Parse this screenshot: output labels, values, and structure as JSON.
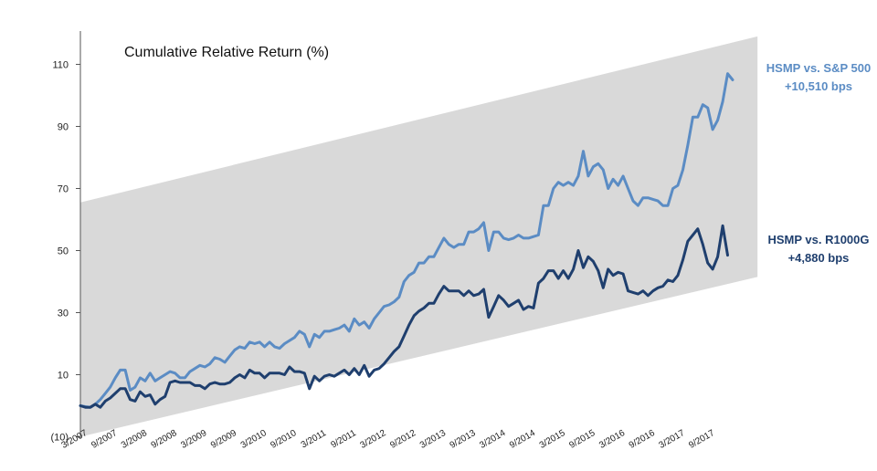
{
  "chart_data": {
    "type": "line",
    "title": "Cumulative Relative Return (%)",
    "xlabel": "",
    "ylabel": "",
    "ylim": [
      -10,
      120
    ],
    "yticks": [
      {
        "value": -10,
        "label": "(10)"
      },
      {
        "value": 10,
        "label": "10"
      },
      {
        "value": 30,
        "label": "30"
      },
      {
        "value": 50,
        "label": "50"
      },
      {
        "value": 70,
        "label": "70"
      },
      {
        "value": 90,
        "label": "90"
      },
      {
        "value": 110,
        "label": "110"
      }
    ],
    "xticks": [
      {
        "month": 0,
        "label": "3/2007"
      },
      {
        "month": 6,
        "label": "9/2007"
      },
      {
        "month": 12,
        "label": "3/2008"
      },
      {
        "month": 18,
        "label": "9/2008"
      },
      {
        "month": 24,
        "label": "3/2009"
      },
      {
        "month": 30,
        "label": "9/2009"
      },
      {
        "month": 36,
        "label": "3/2010"
      },
      {
        "month": 42,
        "label": "9/2010"
      },
      {
        "month": 48,
        "label": "3/2011"
      },
      {
        "month": 54,
        "label": "9/2011"
      },
      {
        "month": 60,
        "label": "3/2012"
      },
      {
        "month": 66,
        "label": "9/2012"
      },
      {
        "month": 72,
        "label": "3/2013"
      },
      {
        "month": 78,
        "label": "9/2013"
      },
      {
        "month": 84,
        "label": "3/2014"
      },
      {
        "month": 90,
        "label": "9/2014"
      },
      {
        "month": 96,
        "label": "3/2015"
      },
      {
        "month": 102,
        "label": "9/2015"
      },
      {
        "month": 108,
        "label": "3/2016"
      },
      {
        "month": 114,
        "label": "9/2016"
      },
      {
        "month": 120,
        "label": "3/2017"
      },
      {
        "month": 126,
        "label": "9/2017"
      }
    ],
    "band": {
      "lower": [
        [
          0,
          -10
        ],
        [
          136,
          41.5
        ]
      ],
      "upper": [
        [
          0,
          65.5
        ],
        [
          136,
          119
        ]
      ],
      "color": "#d9d9d9"
    },
    "series": [
      {
        "name": "HSMP vs. S&P 500",
        "color": "#5b8cc4",
        "points": [
          [
            0,
            0
          ],
          [
            1,
            -0.3
          ],
          [
            2,
            -0.5
          ],
          [
            3,
            0.5
          ],
          [
            4,
            2
          ],
          [
            5,
            4
          ],
          [
            6,
            6
          ],
          [
            7,
            9
          ],
          [
            8,
            11.5
          ],
          [
            9,
            11.5
          ],
          [
            10,
            5
          ],
          [
            11,
            6
          ],
          [
            12,
            9
          ],
          [
            13,
            8
          ],
          [
            14,
            10.5
          ],
          [
            15,
            8
          ],
          [
            16,
            9
          ],
          [
            17,
            10
          ],
          [
            18,
            11
          ],
          [
            19,
            10.5
          ],
          [
            20,
            9
          ],
          [
            21,
            9
          ],
          [
            22,
            11
          ],
          [
            23,
            12
          ],
          [
            24,
            13
          ],
          [
            25,
            12.5
          ],
          [
            26,
            13.5
          ],
          [
            27,
            15.5
          ],
          [
            28,
            15
          ],
          [
            29,
            14
          ],
          [
            30,
            16
          ],
          [
            31,
            18
          ],
          [
            32,
            19
          ],
          [
            33,
            18.5
          ],
          [
            34,
            20.5
          ],
          [
            35,
            20
          ],
          [
            36,
            20.5
          ],
          [
            37,
            19
          ],
          [
            38,
            20.5
          ],
          [
            39,
            19
          ],
          [
            40,
            18.5
          ],
          [
            41,
            20
          ],
          [
            42,
            21
          ],
          [
            43,
            22
          ],
          [
            44,
            24
          ],
          [
            45,
            23
          ],
          [
            46,
            19
          ],
          [
            47,
            23
          ],
          [
            48,
            22
          ],
          [
            49,
            24
          ],
          [
            50,
            24
          ],
          [
            51,
            24.5
          ],
          [
            52,
            25
          ],
          [
            53,
            26
          ],
          [
            54,
            24
          ],
          [
            55,
            28
          ],
          [
            56,
            26
          ],
          [
            57,
            27
          ],
          [
            58,
            25
          ],
          [
            59,
            28
          ],
          [
            60,
            30
          ],
          [
            61,
            32
          ],
          [
            62,
            32.5
          ],
          [
            63,
            33.5
          ],
          [
            64,
            35
          ],
          [
            65,
            40
          ],
          [
            66,
            42
          ],
          [
            67,
            43
          ],
          [
            68,
            46
          ],
          [
            69,
            46
          ],
          [
            70,
            48
          ],
          [
            71,
            48
          ],
          [
            72,
            51
          ],
          [
            73,
            54
          ],
          [
            74,
            52
          ],
          [
            75,
            51
          ],
          [
            76,
            52
          ],
          [
            77,
            52
          ],
          [
            78,
            56
          ],
          [
            79,
            56
          ],
          [
            80,
            57
          ],
          [
            81,
            59
          ],
          [
            82,
            50
          ],
          [
            83,
            56
          ],
          [
            84,
            56
          ],
          [
            85,
            54
          ],
          [
            86,
            53.5
          ],
          [
            87,
            54
          ],
          [
            88,
            55
          ],
          [
            89,
            54
          ],
          [
            90,
            54
          ],
          [
            91,
            54.5
          ],
          [
            92,
            55
          ],
          [
            93,
            64.5
          ],
          [
            94,
            64.5
          ],
          [
            95,
            70
          ],
          [
            96,
            72
          ],
          [
            97,
            71
          ],
          [
            98,
            72
          ],
          [
            99,
            71
          ],
          [
            100,
            74
          ],
          [
            101,
            82
          ],
          [
            102,
            74
          ],
          [
            103,
            77
          ],
          [
            104,
            78
          ],
          [
            105,
            76
          ],
          [
            106,
            70
          ],
          [
            107,
            73
          ],
          [
            108,
            71
          ],
          [
            109,
            74
          ],
          [
            110,
            70
          ],
          [
            111,
            66
          ],
          [
            112,
            64.5
          ],
          [
            113,
            67
          ],
          [
            114,
            67
          ],
          [
            115,
            66.5
          ],
          [
            116,
            66
          ],
          [
            117,
            64.5
          ],
          [
            118,
            64.5
          ],
          [
            119,
            70
          ],
          [
            120,
            71
          ],
          [
            121,
            76
          ],
          [
            122,
            84
          ],
          [
            123,
            93
          ],
          [
            124,
            93
          ],
          [
            125,
            97
          ],
          [
            126,
            96
          ],
          [
            127,
            89
          ],
          [
            128,
            92
          ],
          [
            129,
            98
          ],
          [
            130,
            107
          ],
          [
            131,
            105
          ]
        ]
      },
      {
        "name": "HSMP vs. R1000G",
        "color": "#1f3f6e",
        "points": [
          [
            0,
            0
          ],
          [
            1,
            -0.5
          ],
          [
            2,
            -0.5
          ],
          [
            3,
            0.5
          ],
          [
            4,
            -0.5
          ],
          [
            5,
            1.5
          ],
          [
            6,
            2.5
          ],
          [
            7,
            4
          ],
          [
            8,
            5.5
          ],
          [
            9,
            5.5
          ],
          [
            10,
            2
          ],
          [
            11,
            1.5
          ],
          [
            12,
            4.5
          ],
          [
            13,
            3
          ],
          [
            14,
            3.5
          ],
          [
            15,
            0.5
          ],
          [
            16,
            2
          ],
          [
            17,
            3
          ],
          [
            18,
            7.5
          ],
          [
            19,
            8
          ],
          [
            20,
            7.5
          ],
          [
            21,
            7.5
          ],
          [
            22,
            7.5
          ],
          [
            23,
            6.5
          ],
          [
            24,
            6.5
          ],
          [
            25,
            5.5
          ],
          [
            26,
            7
          ],
          [
            27,
            7.5
          ],
          [
            28,
            7
          ],
          [
            29,
            7
          ],
          [
            30,
            7.5
          ],
          [
            31,
            9
          ],
          [
            32,
            10
          ],
          [
            33,
            9
          ],
          [
            34,
            11.5
          ],
          [
            35,
            10.5
          ],
          [
            36,
            10.5
          ],
          [
            37,
            9
          ],
          [
            38,
            10.5
          ],
          [
            39,
            10.5
          ],
          [
            40,
            10.5
          ],
          [
            41,
            10
          ],
          [
            42,
            12.5
          ],
          [
            43,
            11
          ],
          [
            44,
            11
          ],
          [
            45,
            10.5
          ],
          [
            46,
            5.5
          ],
          [
            47,
            9.5
          ],
          [
            48,
            8
          ],
          [
            49,
            9.5
          ],
          [
            50,
            10
          ],
          [
            51,
            9.5
          ],
          [
            52,
            10.5
          ],
          [
            53,
            11.5
          ],
          [
            54,
            10
          ],
          [
            55,
            12
          ],
          [
            56,
            10
          ],
          [
            57,
            13
          ],
          [
            58,
            9.5
          ],
          [
            59,
            11.5
          ],
          [
            60,
            12
          ],
          [
            61,
            13.5
          ],
          [
            62,
            15.5
          ],
          [
            63,
            17.5
          ],
          [
            64,
            19
          ],
          [
            65,
            22.5
          ],
          [
            66,
            26
          ],
          [
            67,
            29
          ],
          [
            68,
            30.5
          ],
          [
            69,
            31.5
          ],
          [
            70,
            33
          ],
          [
            71,
            33
          ],
          [
            72,
            36
          ],
          [
            73,
            38.5
          ],
          [
            74,
            37
          ],
          [
            75,
            37
          ],
          [
            76,
            37
          ],
          [
            77,
            35.5
          ],
          [
            78,
            37
          ],
          [
            79,
            35.5
          ],
          [
            80,
            36
          ],
          [
            81,
            37.5
          ],
          [
            82,
            28.5
          ],
          [
            83,
            32
          ],
          [
            84,
            35.5
          ],
          [
            85,
            34
          ],
          [
            86,
            32
          ],
          [
            87,
            33
          ],
          [
            88,
            34
          ],
          [
            89,
            31
          ],
          [
            90,
            32
          ],
          [
            91,
            31.5
          ],
          [
            92,
            39.5
          ],
          [
            93,
            41
          ],
          [
            94,
            43.5
          ],
          [
            95,
            43.5
          ],
          [
            96,
            41
          ],
          [
            97,
            43.5
          ],
          [
            98,
            41
          ],
          [
            99,
            44
          ],
          [
            100,
            50
          ],
          [
            101,
            44.5
          ],
          [
            102,
            48
          ],
          [
            103,
            46.5
          ],
          [
            104,
            43.5
          ],
          [
            105,
            38
          ],
          [
            106,
            44
          ],
          [
            107,
            42
          ],
          [
            108,
            43
          ],
          [
            109,
            42.5
          ],
          [
            110,
            37
          ],
          [
            111,
            36.5
          ],
          [
            112,
            36
          ],
          [
            113,
            37
          ],
          [
            114,
            35.5
          ],
          [
            115,
            37
          ],
          [
            116,
            38
          ],
          [
            117,
            38.5
          ],
          [
            118,
            40.5
          ],
          [
            119,
            40
          ],
          [
            120,
            42
          ],
          [
            121,
            47
          ],
          [
            122,
            53
          ],
          [
            123,
            55
          ],
          [
            124,
            57
          ],
          [
            125,
            52
          ],
          [
            126,
            46
          ],
          [
            127,
            44
          ],
          [
            128,
            48
          ],
          [
            129,
            58
          ],
          [
            130,
            48.5
          ]
        ]
      }
    ],
    "annotations": [
      {
        "lines": [
          "HSMP vs. S&P 500",
          "+10,510  bps"
        ],
        "color": "#5b8cc4"
      },
      {
        "lines": [
          "HSMP vs. R1000G",
          "+4,880  bps"
        ],
        "color": "#1f3f6e"
      }
    ]
  }
}
